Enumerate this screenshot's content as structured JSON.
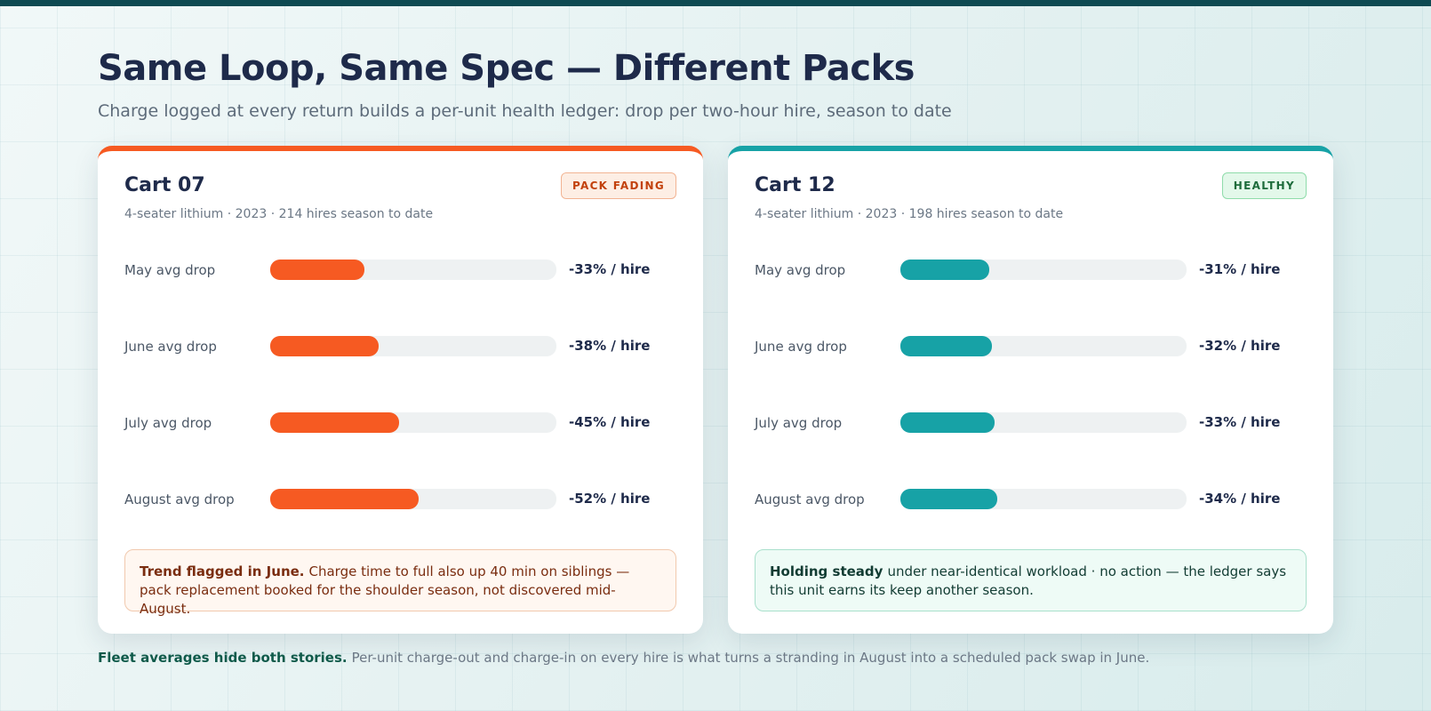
{
  "header": {
    "title": "Same Loop, Same Spec — Different Packs",
    "subtitle": "Charge logged at every return builds a per-unit health ledger: drop per two-hour hire, season to date"
  },
  "xlim": [
    0,
    -100
  ],
  "cards": [
    {
      "name": "Cart 07",
      "badge": "PACK FADING",
      "meta": "4-seater lithium · 2023 · 214 hires season to date",
      "color": "#f65a22",
      "rows": [
        {
          "label": "May avg drop",
          "value": -33,
          "value_label": "-33% / hire"
        },
        {
          "label": "June avg drop",
          "value": -38,
          "value_label": "-38% / hire"
        },
        {
          "label": "July avg drop",
          "value": -45,
          "value_label": "-45% / hire"
        },
        {
          "label": "August avg drop",
          "value": -52,
          "value_label": "-52% / hire"
        }
      ],
      "note": {
        "lead": "Trend flagged in June.",
        "text": "Charge time to full also up 40 min on siblings — pack replacement booked for the shoulder season, not discovered mid-August."
      }
    },
    {
      "name": "Cart 12",
      "badge": "HEALTHY",
      "meta": "4-seater lithium · 2023 · 198 hires season to date",
      "color": "#17a2a6",
      "rows": [
        {
          "label": "May avg drop",
          "value": -31,
          "value_label": "-31% / hire"
        },
        {
          "label": "June avg drop",
          "value": -32,
          "value_label": "-32% / hire"
        },
        {
          "label": "July avg drop",
          "value": -33,
          "value_label": "-33% / hire"
        },
        {
          "label": "August avg drop",
          "value": -34,
          "value_label": "-34% / hire"
        }
      ],
      "note": {
        "lead": "Holding steady",
        "text": "under near-identical workload · no action — the ledger says this unit earns its keep another season."
      }
    }
  ],
  "footer": {
    "lead": "Fleet averages hide both stories.",
    "text": "Per-unit charge-out and charge-in on every hire is what turns a stranding in August into a scheduled pack swap in June."
  }
}
